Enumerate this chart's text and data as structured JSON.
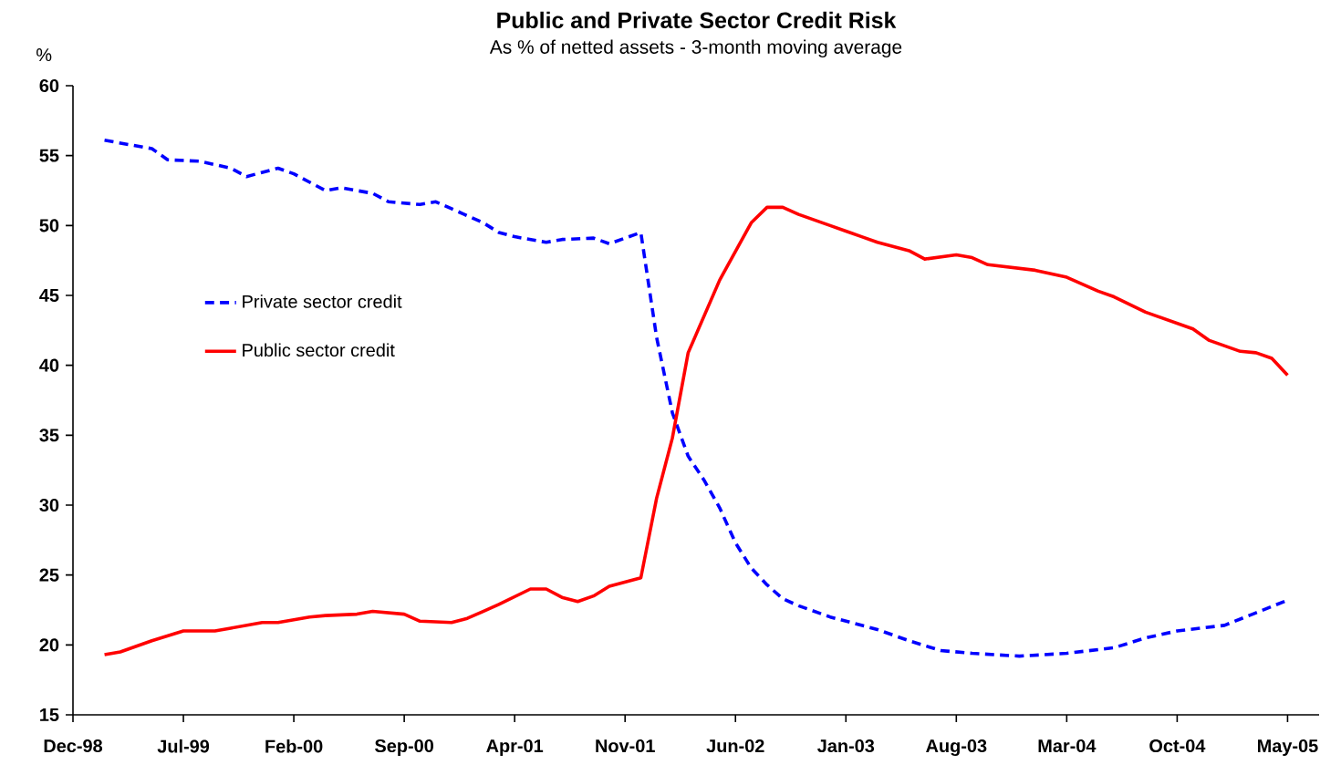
{
  "chart_data": {
    "type": "line",
    "title": "Public and Private Sector Credit Risk",
    "subtitle": "As % of netted assets - 3-month moving average",
    "ylabel": "%",
    "ylim": [
      15,
      60
    ],
    "yticks": [
      15,
      20,
      25,
      30,
      35,
      40,
      45,
      50,
      55,
      60
    ],
    "xlim": [
      "1998-12",
      "2005-07"
    ],
    "xticks": [
      {
        "value": "1998-12",
        "label": "Dec-98"
      },
      {
        "value": "1999-07",
        "label": "Jul-99"
      },
      {
        "value": "2000-02",
        "label": "Feb-00"
      },
      {
        "value": "2000-09",
        "label": "Sep-00"
      },
      {
        "value": "2001-04",
        "label": "Apr-01"
      },
      {
        "value": "2001-11",
        "label": "Nov-01"
      },
      {
        "value": "2002-06",
        "label": "Jun-02"
      },
      {
        "value": "2003-01",
        "label": "Jan-03"
      },
      {
        "value": "2003-08",
        "label": "Aug-03"
      },
      {
        "value": "2004-03",
        "label": "Mar-04"
      },
      {
        "value": "2004-10",
        "label": "Oct-04"
      },
      {
        "value": "2005-05",
        "label": "May-05"
      }
    ],
    "grid": false,
    "legend": "left",
    "marker": "none",
    "series": [
      {
        "name": "Private sector credit",
        "color": "#0000ff",
        "line_style": "dashed",
        "x": [
          "1999-02",
          "1999-05",
          "1999-06",
          "1999-08",
          "1999-10",
          "1999-11",
          "2000-01",
          "2000-02",
          "2000-04",
          "2000-05",
          "2000-07",
          "2000-08",
          "2000-10",
          "2000-11",
          "2000-12",
          "2001-02",
          "2001-03",
          "2001-04",
          "2001-06",
          "2001-07",
          "2001-09",
          "2001-10",
          "2001-12",
          "2002-01",
          "2002-02",
          "2002-03",
          "2002-04",
          "2002-05",
          "2002-06",
          "2002-07",
          "2002-08",
          "2002-09",
          "2002-10",
          "2002-12",
          "2003-03",
          "2003-05",
          "2003-07",
          "2003-09",
          "2003-12",
          "2004-03",
          "2004-06",
          "2004-08",
          "2004-10",
          "2005-01",
          "2005-03",
          "2005-05"
        ],
        "values": [
          56.1,
          55.5,
          54.7,
          54.6,
          54.1,
          53.5,
          54.1,
          53.7,
          52.5,
          52.7,
          52.3,
          51.7,
          51.5,
          51.7,
          51.2,
          50.2,
          49.5,
          49.2,
          48.8,
          49.0,
          49.1,
          48.7,
          49.5,
          42.0,
          36.6,
          33.5,
          31.8,
          29.8,
          27.3,
          25.5,
          24.3,
          23.3,
          22.8,
          22.0,
          21.1,
          20.3,
          19.6,
          19.4,
          19.2,
          19.4,
          19.8,
          20.5,
          21.0,
          21.4,
          22.3,
          23.2
        ]
      },
      {
        "name": "Public sector credit",
        "color": "#ff0000",
        "line_style": "solid",
        "x": [
          "1999-02",
          "1999-03",
          "1999-05",
          "1999-07",
          "1999-09",
          "1999-10",
          "1999-12",
          "2000-01",
          "2000-03",
          "2000-04",
          "2000-06",
          "2000-07",
          "2000-09",
          "2000-10",
          "2000-12",
          "2001-01",
          "2001-02",
          "2001-03",
          "2001-05",
          "2001-06",
          "2001-07",
          "2001-08",
          "2001-09",
          "2001-10",
          "2001-12",
          "2002-01",
          "2002-02",
          "2002-03",
          "2002-05",
          "2002-07",
          "2002-08",
          "2002-09",
          "2002-10",
          "2002-12",
          "2003-01",
          "2003-02",
          "2003-03",
          "2003-05",
          "2003-06",
          "2003-08",
          "2003-09",
          "2003-10",
          "2004-01",
          "2004-03",
          "2004-05",
          "2004-06",
          "2004-08",
          "2004-11",
          "2004-12",
          "2005-02",
          "2005-03",
          "2005-04",
          "2005-05"
        ],
        "values": [
          19.3,
          19.5,
          20.3,
          21.0,
          21.0,
          21.2,
          21.6,
          21.6,
          22.0,
          22.1,
          22.2,
          22.4,
          22.2,
          21.7,
          21.6,
          21.9,
          22.4,
          22.9,
          24.0,
          24.0,
          23.4,
          23.1,
          23.5,
          24.2,
          24.8,
          30.5,
          34.8,
          40.9,
          46.1,
          50.2,
          51.3,
          51.3,
          50.8,
          50.0,
          49.6,
          49.2,
          48.8,
          48.2,
          47.6,
          47.9,
          47.7,
          47.2,
          46.8,
          46.3,
          45.3,
          44.9,
          43.8,
          42.6,
          41.8,
          41.0,
          40.9,
          40.5,
          39.3
        ]
      }
    ]
  }
}
